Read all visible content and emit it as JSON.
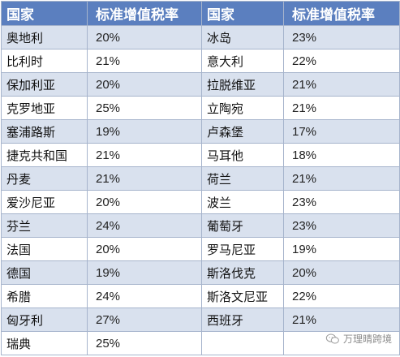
{
  "header": {
    "country_left": "国家",
    "rate_left": "标准增值税率",
    "country_right": "国家",
    "rate_right": "标准增值税率"
  },
  "rows": [
    {
      "c1": "奥地利",
      "r1": "20%",
      "c2": "冰岛",
      "r2": "23%"
    },
    {
      "c1": "比利时",
      "r1": "21%",
      "c2": "意大利",
      "r2": "22%"
    },
    {
      "c1": "保加利亚",
      "r1": "20%",
      "c2": "拉脱维亚",
      "r2": "21%"
    },
    {
      "c1": "克罗地亚",
      "r1": "25%",
      "c2": "立陶宛",
      "r2": "21%"
    },
    {
      "c1": "塞浦路斯",
      "r1": "19%",
      "c2": "卢森堡",
      "r2": "17%"
    },
    {
      "c1": "捷克共和国",
      "r1": "21%",
      "c2": "马耳他",
      "r2": "18%"
    },
    {
      "c1": "丹麦",
      "r1": "21%",
      "c2": "荷兰",
      "r2": "21%"
    },
    {
      "c1": "爱沙尼亚",
      "r1": "20%",
      "c2": "波兰",
      "r2": "23%"
    },
    {
      "c1": "芬兰",
      "r1": "24%",
      "c2": "葡萄牙",
      "r2": "23%"
    },
    {
      "c1": "法国",
      "r1": "20%",
      "c2": "罗马尼亚",
      "r2": "19%"
    },
    {
      "c1": "德国",
      "r1": "19%",
      "c2": "斯洛伐克",
      "r2": "20%"
    },
    {
      "c1": "希腊",
      "r1": "24%",
      "c2": "斯洛文尼亚",
      "r2": "22%"
    },
    {
      "c1": "匈牙利",
      "r1": "27%",
      "c2": "西班牙",
      "r2": "21%"
    },
    {
      "c1": "瑞典",
      "r1": "25%",
      "c2": "",
      "r2": ""
    }
  ],
  "colors": {
    "header_bg": "#5b7fbf",
    "shade_bg": "#d9e1ee",
    "border": "#a6b4cc"
  },
  "watermark": {
    "text": "万理晴跨境",
    "icon": "wechat-icon"
  }
}
